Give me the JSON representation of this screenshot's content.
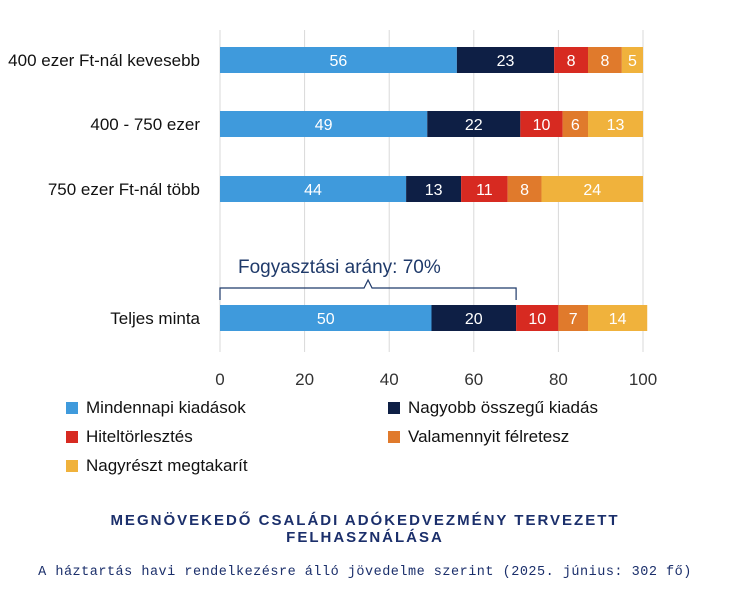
{
  "chart_data": {
    "type": "bar",
    "orientation": "horizontal",
    "stacked": true,
    "categories": [
      "400 ezer Ft-nál kevesebb",
      "400 - 750 ezer",
      "750 ezer Ft-nál több",
      "Teljes minta"
    ],
    "series": [
      {
        "name": "Mindennapi kiadások",
        "color": "#3f9adc",
        "values": [
          56,
          49,
          44,
          50
        ]
      },
      {
        "name": "Nagyobb összegű kiadás",
        "color": "#0e1f45",
        "values": [
          23,
          22,
          13,
          20
        ]
      },
      {
        "name": "Hiteltörlesztés",
        "color": "#d72a21",
        "values": [
          8,
          10,
          11,
          10
        ]
      },
      {
        "name": "Valamennyit félretesz",
        "color": "#e07a2c",
        "values": [
          8,
          6,
          8,
          7
        ]
      },
      {
        "name": "Nagyrészt megtakarít",
        "color": "#f0b23c",
        "values": [
          5,
          13,
          24,
          14
        ]
      }
    ],
    "xlim": [
      0,
      100
    ],
    "xticks": [
      "0",
      "20",
      "40",
      "60",
      "80",
      "100"
    ],
    "grid": true,
    "legend_placement": "bottom",
    "annotation": {
      "text": "Fogyasztási arány: 70%",
      "from": 0,
      "to": 70,
      "category": "Teljes minta"
    },
    "title": "MEGNÖVEKEDŐ CSALÁDI ADÓKEDVEZMÉNY TERVEZETT FELHASZNÁLÁSA",
    "subtitle": "A háztartás havi rendelkezésre álló jövedelme szerint (2025. június: 302 fő)"
  }
}
